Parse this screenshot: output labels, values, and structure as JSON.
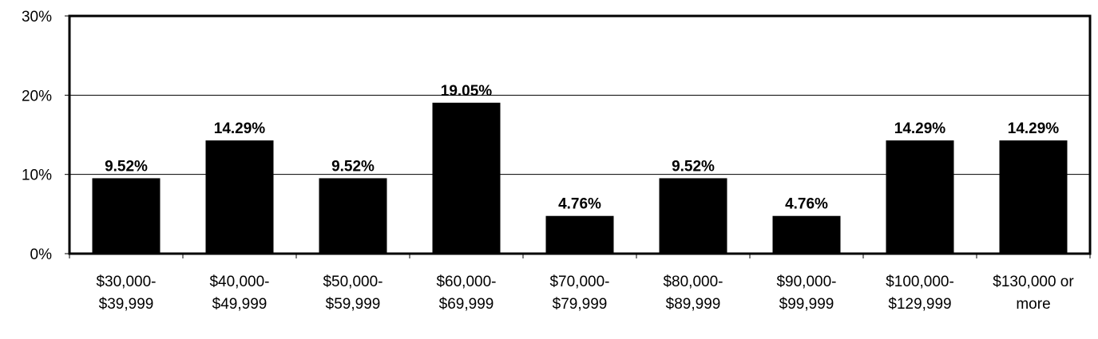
{
  "chart_data": {
    "type": "bar",
    "categories": [
      [
        "$30,000-",
        "$39,999"
      ],
      [
        "$40,000-",
        "$49,999"
      ],
      [
        "$50,000-",
        "$59,999"
      ],
      [
        "$60,000-",
        "$69,999"
      ],
      [
        "$70,000-",
        "$79,999"
      ],
      [
        "$80,000-",
        "$89,999"
      ],
      [
        "$90,000-",
        "$99,999"
      ],
      [
        "$100,000-",
        "$129,999"
      ],
      [
        "$130,000 or",
        "more"
      ]
    ],
    "values": [
      9.52,
      14.29,
      9.52,
      19.05,
      4.76,
      9.52,
      4.76,
      14.29,
      14.29
    ],
    "data_labels": [
      "9.52%",
      "14.29%",
      "9.52%",
      "19.05%",
      "4.76%",
      "9.52%",
      "4.76%",
      "14.29%",
      "14.29%"
    ],
    "y_ticks": [
      0,
      10,
      20,
      30
    ],
    "y_tick_labels": [
      "0%",
      "10%",
      "20%",
      "30%"
    ],
    "ylim": [
      0,
      30
    ],
    "grid": true,
    "bar_color": "#000000",
    "title": "",
    "xlabel": "",
    "ylabel": ""
  }
}
